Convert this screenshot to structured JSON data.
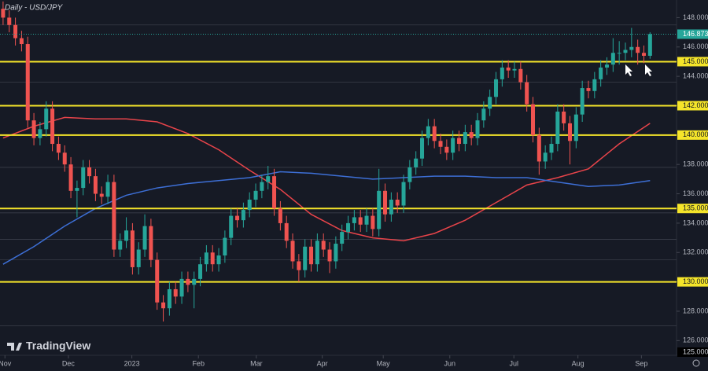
{
  "chart_data": {
    "type": "candlestick",
    "title": "Daily - USD/JPY",
    "watermark": "TradingView",
    "up_color": "#26a69a",
    "down_color": "#ef5350",
    "open": [
      148.6,
      148.0,
      147.5,
      146.6,
      146.2,
      141.0,
      139.8,
      140.4,
      141.8,
      139.4,
      138.8,
      138.0,
      136.2,
      136.4,
      137.8,
      137.2,
      136.0,
      135.8,
      136.8,
      132.2,
      132.8,
      133.5,
      131.0,
      132.2,
      133.8,
      131.5,
      128.6,
      128.2,
      129.5,
      129.0,
      130.2,
      129.8,
      130.2,
      131.2,
      132.0,
      131.2,
      131.8,
      133.0,
      134.5,
      134.2,
      134.9,
      135.6,
      136.2,
      136.8,
      137.2,
      135.0,
      134.0,
      132.8,
      131.4,
      130.8,
      132.4,
      131.2,
      132.8,
      132.2,
      131.4,
      132.6,
      133.4,
      134.0,
      134.4,
      133.9,
      134.5,
      133.6,
      136.2,
      134.6,
      135.6,
      135.2,
      136.8,
      137.8,
      138.4,
      139.8,
      140.6,
      139.6,
      139.2,
      138.8,
      139.8,
      139.4,
      140.2,
      139.8,
      141.0,
      141.8,
      142.6,
      143.8,
      144.6,
      144.4,
      144.5,
      143.6,
      142.1,
      140.0,
      138.2,
      138.8,
      139.4,
      141.6,
      140.8,
      139.6,
      141.4,
      143.2,
      143.0,
      143.8,
      144.6,
      144.8,
      145.6,
      145.6,
      145.8,
      146.0,
      145.6,
      145.4
    ],
    "high": [
      149.1,
      148.5,
      148.0,
      147.1,
      146.7,
      141.5,
      140.9,
      142.3,
      142.3,
      139.9,
      139.3,
      138.5,
      136.9,
      138.3,
      138.3,
      137.7,
      136.5,
      137.3,
      137.3,
      133.3,
      134.4,
      134.0,
      132.7,
      134.6,
      134.3,
      132.0,
      129.1,
      130.0,
      130.0,
      130.7,
      130.7,
      130.7,
      131.7,
      132.5,
      132.5,
      132.3,
      133.5,
      135.0,
      135.0,
      135.4,
      136.1,
      136.7,
      137.3,
      137.9,
      137.7,
      135.5,
      134.5,
      133.3,
      131.9,
      132.9,
      132.9,
      133.3,
      133.3,
      132.7,
      133.1,
      133.9,
      134.5,
      134.9,
      134.9,
      135.0,
      135.0,
      137.7,
      136.7,
      136.1,
      136.1,
      137.3,
      138.3,
      138.9,
      140.3,
      141.1,
      141.1,
      140.1,
      139.7,
      140.3,
      140.3,
      140.7,
      140.7,
      141.5,
      142.3,
      143.1,
      144.3,
      145.1,
      145.1,
      145.0,
      145.0,
      144.1,
      142.6,
      140.5,
      139.3,
      139.9,
      142.1,
      142.1,
      141.3,
      141.9,
      143.7,
      143.7,
      144.3,
      145.1,
      145.3,
      146.6,
      146.4,
      146.3,
      147.3,
      146.5,
      146.1,
      147.0
    ],
    "low": [
      147.5,
      147.0,
      146.1,
      145.7,
      140.5,
      139.3,
      139.3,
      139.9,
      138.9,
      138.3,
      137.5,
      135.7,
      134.4,
      135.9,
      136.7,
      135.5,
      135.3,
      135.3,
      131.7,
      131.7,
      132.3,
      130.5,
      130.5,
      131.7,
      131.0,
      128.1,
      127.3,
      127.7,
      128.5,
      128.5,
      129.3,
      128.2,
      129.7,
      130.7,
      130.7,
      130.7,
      131.3,
      132.5,
      133.7,
      133.7,
      134.4,
      135.1,
      135.7,
      136.3,
      134.5,
      133.5,
      132.3,
      130.9,
      130.0,
      130.3,
      130.7,
      130.7,
      131.7,
      130.6,
      130.9,
      132.1,
      132.9,
      133.5,
      133.4,
      133.4,
      133.1,
      133.1,
      134.1,
      134.1,
      134.7,
      134.7,
      136.3,
      137.3,
      137.9,
      139.3,
      139.1,
      138.7,
      138.3,
      138.3,
      138.9,
      138.9,
      139.3,
      139.3,
      140.5,
      141.3,
      142.1,
      143.3,
      143.9,
      143.9,
      143.1,
      141.6,
      139.5,
      137.3,
      137.7,
      138.3,
      138.9,
      140.3,
      138.0,
      139.1,
      140.9,
      142.5,
      142.5,
      143.3,
      144.1,
      144.3,
      144.8,
      145.1,
      145.3,
      144.8,
      144.9,
      145.2
    ],
    "close": [
      148.0,
      147.5,
      146.6,
      146.2,
      141.0,
      139.8,
      140.4,
      141.8,
      139.4,
      138.8,
      138.0,
      136.2,
      136.4,
      137.8,
      137.2,
      136.0,
      135.8,
      136.8,
      132.2,
      132.8,
      133.5,
      131.0,
      132.2,
      133.8,
      131.5,
      128.6,
      128.2,
      129.5,
      129.0,
      130.2,
      129.8,
      130.2,
      131.2,
      132.0,
      131.2,
      131.8,
      133.0,
      134.5,
      134.2,
      134.9,
      135.6,
      136.2,
      136.8,
      137.2,
      135.0,
      134.0,
      132.8,
      131.4,
      130.8,
      132.4,
      131.2,
      132.8,
      132.2,
      131.4,
      132.6,
      133.4,
      134.0,
      134.4,
      133.9,
      134.5,
      133.6,
      136.2,
      134.6,
      135.6,
      135.2,
      136.8,
      137.8,
      138.4,
      139.8,
      140.6,
      139.6,
      139.2,
      138.8,
      139.8,
      139.4,
      140.2,
      139.8,
      141.0,
      141.8,
      142.6,
      143.8,
      144.6,
      144.4,
      144.5,
      143.6,
      142.1,
      140.0,
      138.2,
      138.8,
      139.4,
      141.6,
      140.8,
      139.6,
      141.4,
      143.2,
      143.0,
      143.8,
      144.6,
      144.8,
      145.6,
      145.6,
      145.8,
      146.0,
      145.6,
      145.4,
      146.873
    ],
    "moving_averages": [
      {
        "color": "#e8444a",
        "x": [
          0,
          5,
          10,
          15,
          20,
          25,
          30,
          35,
          40,
          45,
          50,
          55,
          60,
          65,
          70,
          75,
          80,
          85,
          90,
          95,
          100,
          105
        ],
        "values": [
          139.8,
          140.6,
          141.2,
          141.1,
          141.1,
          140.9,
          140.1,
          139.0,
          137.6,
          136.3,
          134.6,
          133.5,
          133.0,
          132.8,
          133.3,
          134.2,
          135.4,
          136.6,
          137.1,
          137.7,
          139.4,
          140.8
        ]
      },
      {
        "color": "#3d6fd6",
        "x": [
          0,
          5,
          10,
          15,
          20,
          25,
          30,
          35,
          40,
          45,
          50,
          55,
          60,
          65,
          70,
          75,
          80,
          85,
          90,
          95,
          100,
          105
        ],
        "values": [
          131.2,
          132.4,
          133.8,
          135.0,
          135.9,
          136.4,
          136.7,
          136.9,
          137.1,
          137.5,
          137.4,
          137.2,
          137.0,
          137.1,
          137.2,
          137.2,
          137.1,
          137.1,
          136.8,
          136.5,
          136.6,
          136.9
        ]
      }
    ],
    "level_color": "#f5e52a",
    "levels": [
      {
        "value": 145,
        "label": "145.000"
      },
      {
        "value": 142,
        "label": "142.000"
      },
      {
        "value": 140,
        "label": "140.000"
      },
      {
        "value": 135,
        "label": "135.000"
      },
      {
        "value": 130,
        "label": "130.000"
      }
    ],
    "minor_levels": [
      147.5,
      143.6,
      137.8,
      134.7,
      132.9,
      131.5,
      127.0
    ],
    "last_price": {
      "value": 146.873,
      "label": "146.873"
    },
    "bottom_label": {
      "value": 125,
      "label": "125.000"
    },
    "ylim": [
      125,
      149.2
    ],
    "yticks": [
      {
        "value": 148,
        "label": "148.000"
      },
      {
        "value": 146,
        "label": "146.000"
      },
      {
        "value": 144,
        "label": "144.000"
      },
      {
        "value": 142,
        "label": "142.000"
      },
      {
        "value": 140,
        "label": "140.000"
      },
      {
        "value": 138,
        "label": "138.000"
      },
      {
        "value": 136,
        "label": "136.000"
      },
      {
        "value": 134,
        "label": "134.000"
      },
      {
        "value": 132,
        "label": "132.000"
      },
      {
        "value": 130,
        "label": "130.000"
      },
      {
        "value": 128,
        "label": "128.000"
      },
      {
        "value": 126,
        "label": "126.000"
      }
    ],
    "xlim": [
      -0.5,
      109.3
    ],
    "xticks": [
      {
        "value": 0.3,
        "label": "Nov"
      },
      {
        "value": 10.6,
        "label": "Dec"
      },
      {
        "value": 20.9,
        "label": "2023"
      },
      {
        "value": 31.7,
        "label": "Feb"
      },
      {
        "value": 41.1,
        "label": "Mar"
      },
      {
        "value": 51.8,
        "label": "Apr"
      },
      {
        "value": 61.7,
        "label": "May"
      },
      {
        "value": 72.5,
        "label": "Jun"
      },
      {
        "value": 82.9,
        "label": "Jul"
      },
      {
        "value": 93.3,
        "label": "Aug"
      },
      {
        "value": 103.6,
        "label": "Sep"
      }
    ]
  }
}
